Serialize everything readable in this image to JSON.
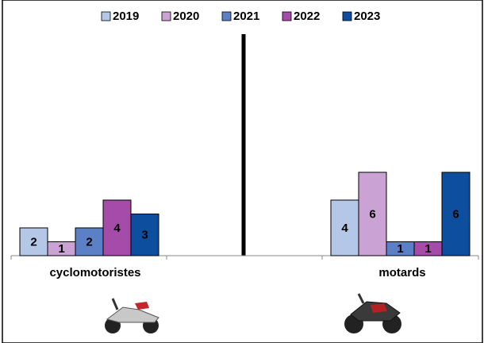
{
  "chart_data": {
    "type": "bar",
    "categories": [
      "cyclomotoristes",
      "motards"
    ],
    "series": [
      {
        "name": "2019",
        "color": "#b4c7e7",
        "values": [
          2,
          4
        ]
      },
      {
        "name": "2020",
        "color": "#caa2d4",
        "values": [
          1,
          6
        ]
      },
      {
        "name": "2021",
        "color": "#5b80c6",
        "values": [
          2,
          1
        ]
      },
      {
        "name": "2022",
        "color": "#a54ca8",
        "values": [
          4,
          1
        ]
      },
      {
        "name": "2023",
        "color": "#0d4f9e",
        "values": [
          3,
          6
        ]
      }
    ]
  }
}
